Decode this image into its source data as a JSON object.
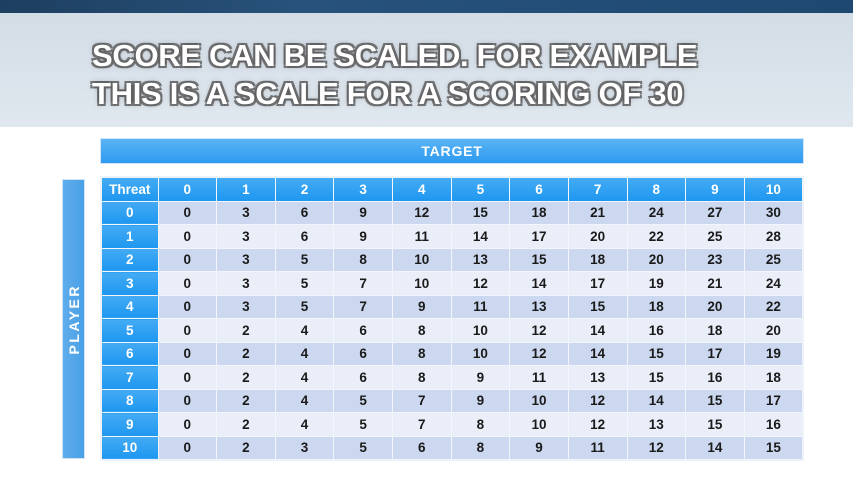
{
  "title": {
    "line1": "SCORE CAN BE SCALED. FOR EXAMPLE",
    "line2": "THIS IS A SCALE FOR A SCORING OF 30"
  },
  "table": {
    "target_label": "TARGET",
    "player_label": "PLAYER",
    "corner_label": "Threat",
    "column_headers": [
      "0",
      "1",
      "2",
      "3",
      "4",
      "5",
      "6",
      "7",
      "8",
      "9",
      "10"
    ],
    "rows": [
      {
        "threat": "0",
        "values": [
          0,
          3,
          6,
          9,
          12,
          15,
          18,
          21,
          24,
          27,
          30
        ]
      },
      {
        "threat": "1",
        "values": [
          0,
          3,
          6,
          9,
          11,
          14,
          17,
          20,
          22,
          25,
          28
        ]
      },
      {
        "threat": "2",
        "values": [
          0,
          3,
          5,
          8,
          10,
          13,
          15,
          18,
          20,
          23,
          25
        ]
      },
      {
        "threat": "3",
        "values": [
          0,
          3,
          5,
          7,
          10,
          12,
          14,
          17,
          19,
          21,
          24
        ]
      },
      {
        "threat": "4",
        "values": [
          0,
          3,
          5,
          7,
          9,
          11,
          13,
          15,
          18,
          20,
          22
        ]
      },
      {
        "threat": "5",
        "values": [
          0,
          2,
          4,
          6,
          8,
          10,
          12,
          14,
          16,
          18,
          20
        ]
      },
      {
        "threat": "6",
        "values": [
          0,
          2,
          4,
          6,
          8,
          10,
          12,
          14,
          15,
          17,
          19
        ]
      },
      {
        "threat": "7",
        "values": [
          0,
          2,
          4,
          6,
          8,
          9,
          11,
          13,
          15,
          16,
          18
        ]
      },
      {
        "threat": "8",
        "values": [
          0,
          2,
          4,
          5,
          7,
          9,
          10,
          12,
          14,
          15,
          17
        ]
      },
      {
        "threat": "9",
        "values": [
          0,
          2,
          4,
          5,
          7,
          8,
          10,
          12,
          13,
          15,
          16
        ]
      },
      {
        "threat": "10",
        "values": [
          0,
          2,
          3,
          5,
          6,
          8,
          9,
          11,
          12,
          14,
          15
        ]
      }
    ]
  },
  "colors": {
    "header_blue": "#2e9cf1",
    "player_bar_blue": "#55a8ea",
    "row_band_dark": "#ccd8ef",
    "row_band_light": "#e9eef9",
    "grid_line": "#f2f6fb",
    "title_text": "#ffffff",
    "title_outline": "#606062",
    "cell_text": "#1a1a1a",
    "top_strip_blue": "#27517a"
  }
}
